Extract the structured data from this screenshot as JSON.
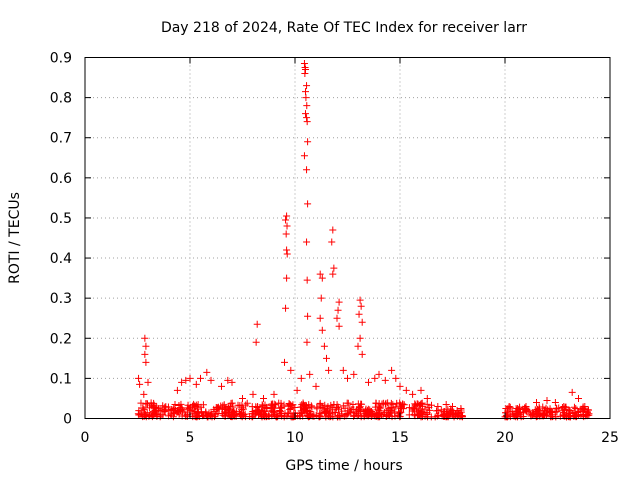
{
  "chart_data": {
    "type": "scatter",
    "title": "Day 218 of 2024, Rate Of TEC Index for receiver larr",
    "xlabel": "GPS time / hours",
    "ylabel": "ROTI / TECUs",
    "xlim": [
      0,
      25
    ],
    "ylim": [
      0,
      0.9
    ],
    "xticks": [
      "0",
      "5",
      "10",
      "15",
      "20",
      "25"
    ],
    "yticks": [
      "0",
      "0.1",
      "0.2",
      "0.3",
      "0.4",
      "0.5",
      "0.6",
      "0.7",
      "0.8",
      "0.9"
    ],
    "grid": true,
    "marker": "+",
    "marker_color": "#ff0000",
    "series": [
      {
        "name": "ROTI",
        "points": [
          [
            10.45,
            0.885
          ],
          [
            10.48,
            0.875
          ],
          [
            10.5,
            0.87
          ],
          [
            10.47,
            0.86
          ],
          [
            10.55,
            0.83
          ],
          [
            10.5,
            0.815
          ],
          [
            10.52,
            0.8
          ],
          [
            10.56,
            0.78
          ],
          [
            10.5,
            0.76
          ],
          [
            10.55,
            0.75
          ],
          [
            10.58,
            0.74
          ],
          [
            10.6,
            0.69
          ],
          [
            10.45,
            0.655
          ],
          [
            10.55,
            0.62
          ],
          [
            10.6,
            0.535
          ],
          [
            9.6,
            0.505
          ],
          [
            9.55,
            0.495
          ],
          [
            9.62,
            0.48
          ],
          [
            9.58,
            0.46
          ],
          [
            9.6,
            0.42
          ],
          [
            9.63,
            0.41
          ],
          [
            9.6,
            0.35
          ],
          [
            9.55,
            0.275
          ],
          [
            10.55,
            0.44
          ],
          [
            10.58,
            0.345
          ],
          [
            10.6,
            0.255
          ],
          [
            10.57,
            0.19
          ],
          [
            11.8,
            0.47
          ],
          [
            11.75,
            0.44
          ],
          [
            11.85,
            0.375
          ],
          [
            11.8,
            0.36
          ],
          [
            11.2,
            0.36
          ],
          [
            11.3,
            0.35
          ],
          [
            11.25,
            0.3
          ],
          [
            11.2,
            0.25
          ],
          [
            11.3,
            0.22
          ],
          [
            11.4,
            0.18
          ],
          [
            11.5,
            0.15
          ],
          [
            12.1,
            0.29
          ],
          [
            12.05,
            0.27
          ],
          [
            12.0,
            0.25
          ],
          [
            12.1,
            0.23
          ],
          [
            13.1,
            0.295
          ],
          [
            13.15,
            0.28
          ],
          [
            13.05,
            0.26
          ],
          [
            13.2,
            0.24
          ],
          [
            13.1,
            0.2
          ],
          [
            13.0,
            0.18
          ],
          [
            13.2,
            0.16
          ],
          [
            8.2,
            0.235
          ],
          [
            8.15,
            0.19
          ],
          [
            2.85,
            0.2
          ],
          [
            2.9,
            0.18
          ],
          [
            2.85,
            0.16
          ],
          [
            2.9,
            0.14
          ],
          [
            2.55,
            0.1
          ],
          [
            2.6,
            0.085
          ],
          [
            3.0,
            0.09
          ],
          [
            2.8,
            0.06
          ],
          [
            4.4,
            0.07
          ],
          [
            4.6,
            0.09
          ],
          [
            4.8,
            0.095
          ],
          [
            5.0,
            0.1
          ],
          [
            5.3,
            0.085
          ],
          [
            5.5,
            0.1
          ],
          [
            5.8,
            0.115
          ],
          [
            6.0,
            0.095
          ],
          [
            6.5,
            0.08
          ],
          [
            6.8,
            0.095
          ],
          [
            7.0,
            0.09
          ],
          [
            7.5,
            0.05
          ],
          [
            8.0,
            0.06
          ],
          [
            8.5,
            0.05
          ],
          [
            9.0,
            0.06
          ],
          [
            9.5,
            0.14
          ],
          [
            9.8,
            0.12
          ],
          [
            10.1,
            0.07
          ],
          [
            10.3,
            0.1
          ],
          [
            10.7,
            0.11
          ],
          [
            11.0,
            0.08
          ],
          [
            11.6,
            0.12
          ],
          [
            12.3,
            0.12
          ],
          [
            12.5,
            0.1
          ],
          [
            12.8,
            0.11
          ],
          [
            13.5,
            0.09
          ],
          [
            13.8,
            0.1
          ],
          [
            14.0,
            0.11
          ],
          [
            14.3,
            0.095
          ],
          [
            14.6,
            0.12
          ],
          [
            14.8,
            0.1
          ],
          [
            15.0,
            0.08
          ],
          [
            15.3,
            0.07
          ],
          [
            15.6,
            0.06
          ],
          [
            16.0,
            0.07
          ],
          [
            16.3,
            0.05
          ],
          [
            16.8,
            0.03
          ],
          [
            17.2,
            0.035
          ],
          [
            17.5,
            0.03
          ],
          [
            17.9,
            0.025
          ],
          [
            20.2,
            0.03
          ],
          [
            20.6,
            0.025
          ],
          [
            21.0,
            0.03
          ],
          [
            21.5,
            0.04
          ],
          [
            22.0,
            0.045
          ],
          [
            22.4,
            0.04
          ],
          [
            22.8,
            0.03
          ],
          [
            23.2,
            0.065
          ],
          [
            23.5,
            0.05
          ],
          [
            23.8,
            0.03
          ]
        ],
        "dense_bands": [
          {
            "x_start": 2.5,
            "x_end": 16.5,
            "y_max": 0.035
          },
          {
            "x_start": 16.6,
            "x_end": 18.0,
            "y_max": 0.02
          },
          {
            "x_start": 20.0,
            "x_end": 24.0,
            "y_max": 0.025
          }
        ]
      }
    ]
  }
}
